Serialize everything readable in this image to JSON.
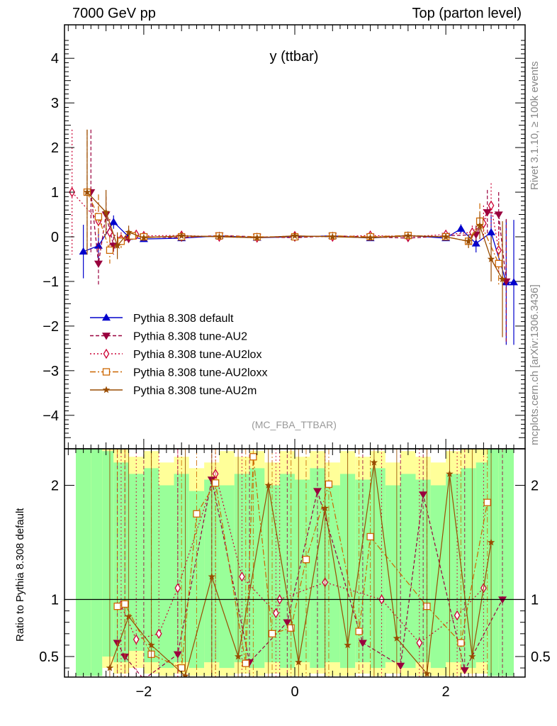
{
  "header": {
    "left": "7000 GeV pp",
    "right": "Top (parton level)"
  },
  "side_labels": {
    "rivet": "Rivet 3.1.10, ≥ 100k events",
    "mcplots": "mcplots.cern.ch [arXiv:1306.3436]"
  },
  "chart_data": [
    {
      "type": "line",
      "title": "y (ttbar)",
      "watermark": "(MC_FBA_TTBAR)",
      "xlim": [
        -3.05,
        3.05
      ],
      "ylim": [
        -4.75,
        4.75
      ],
      "yticks": [
        -4,
        -3,
        -2,
        -1,
        0,
        1,
        2,
        3,
        4
      ],
      "ytick_labels": [
        "−4",
        "−3",
        "−2",
        "−1",
        "0",
        "1",
        "2",
        "3",
        "4"
      ],
      "legend": "middle-left",
      "series": [
        {
          "name": "Pythia 8.308 default",
          "color": "#0000cc",
          "marker": "triangle-up",
          "dash": "none",
          "x": [
            -2.8,
            -2.6,
            -2.4,
            -2.2,
            -2.0,
            -1.5,
            -1.0,
            -0.5,
            0.0,
            0.5,
            1.0,
            1.5,
            2.0,
            2.2,
            2.4,
            2.6,
            2.8,
            2.9
          ],
          "y": [
            -0.33,
            -0.2,
            0.33,
            0.0,
            -0.05,
            -0.03,
            0.02,
            -0.02,
            0.0,
            0.02,
            -0.03,
            0.03,
            -0.03,
            0.18,
            -0.15,
            0.1,
            -1.02,
            -1.02
          ],
          "err": [
            0.6,
            0.35,
            0.15,
            0.08,
            0.04,
            0.03,
            0.03,
            0.03,
            0.03,
            0.03,
            0.03,
            0.03,
            0.05,
            0.1,
            0.2,
            0.4,
            1.4,
            1.4
          ]
        },
        {
          "name": "Pythia 8.308 tune-AU2",
          "color": "#99003d",
          "marker": "triangle-down",
          "dash": "5,3",
          "x": [
            -2.7,
            -2.6,
            -2.5,
            -2.4,
            -2.2,
            -2.0,
            -1.5,
            -1.0,
            -0.5,
            0.0,
            0.5,
            1.0,
            1.5,
            2.0,
            2.4,
            2.55,
            2.7,
            2.8
          ],
          "y": [
            1.0,
            -0.6,
            0.5,
            -0.2,
            -0.05,
            0.0,
            -0.02,
            0.03,
            0.0,
            -0.02,
            0.02,
            0.0,
            -0.03,
            0.02,
            0.05,
            0.55,
            0.5,
            -1.0
          ],
          "err": [
            1.4,
            0.5,
            0.4,
            0.2,
            0.08,
            0.04,
            0.03,
            0.03,
            0.03,
            0.03,
            0.03,
            0.03,
            0.03,
            0.05,
            0.2,
            0.5,
            0.5,
            1.4
          ]
        },
        {
          "name": "Pythia 8.308 tune-AU2lox",
          "color": "#cc0033",
          "marker": "diamond-open",
          "dash": "2,3",
          "x": [
            -2.95,
            -2.6,
            -2.45,
            -2.3,
            -2.1,
            -2.0,
            -1.5,
            -1.0,
            -0.5,
            0.0,
            0.5,
            1.0,
            1.5,
            2.0,
            2.35,
            2.5,
            2.6,
            2.7
          ],
          "y": [
            1.0,
            0.35,
            0.1,
            -0.05,
            0.05,
            0.02,
            0.03,
            0.0,
            -0.02,
            0.02,
            0.0,
            0.03,
            0.0,
            0.05,
            0.1,
            0.3,
            0.7,
            -0.3
          ],
          "err": [
            1.4,
            0.4,
            0.3,
            0.15,
            0.08,
            0.04,
            0.03,
            0.03,
            0.03,
            0.03,
            0.03,
            0.03,
            0.03,
            0.05,
            0.15,
            0.4,
            0.5,
            0.5
          ]
        },
        {
          "name": "Pythia 8.308 tune-AU2loxx",
          "color": "#cc6600",
          "marker": "square-open",
          "dash": "8,3,2,3",
          "x": [
            -2.75,
            -2.6,
            -2.45,
            -2.3,
            -2.15,
            -2.0,
            -1.5,
            -1.0,
            -0.5,
            0.0,
            0.5,
            1.0,
            1.5,
            2.0,
            2.3,
            2.45,
            2.7
          ],
          "y": [
            1.0,
            0.45,
            -0.3,
            -0.1,
            0.02,
            0.0,
            0.0,
            0.02,
            0.0,
            0.0,
            0.02,
            0.0,
            0.03,
            0.0,
            -0.1,
            0.35,
            -0.6
          ],
          "err": [
            1.4,
            0.5,
            0.3,
            0.15,
            0.08,
            0.04,
            0.03,
            0.03,
            0.03,
            0.03,
            0.03,
            0.03,
            0.03,
            0.05,
            0.15,
            0.4,
            0.5
          ]
        },
        {
          "name": "Pythia 8.308 tune-AU2m",
          "color": "#994c00",
          "marker": "star",
          "dash": "none",
          "x": [
            -2.75,
            -2.5,
            -2.35,
            -2.2,
            -2.0,
            -1.5,
            -1.0,
            -0.5,
            0.0,
            0.5,
            1.0,
            1.5,
            2.0,
            2.3,
            2.45,
            2.6,
            2.75
          ],
          "y": [
            1.0,
            0.55,
            -0.2,
            0.1,
            -0.02,
            0.02,
            0.0,
            -0.02,
            0.02,
            0.0,
            -0.02,
            0.02,
            0.0,
            -0.1,
            0.25,
            -0.5,
            -0.95
          ],
          "err": [
            1.4,
            0.5,
            0.3,
            0.15,
            0.05,
            0.03,
            0.03,
            0.03,
            0.03,
            0.03,
            0.03,
            0.03,
            0.05,
            0.15,
            0.3,
            0.5,
            1.3
          ]
        }
      ]
    },
    {
      "type": "line",
      "ylabel": "Ratio to Pythia 8.308 default",
      "xlim": [
        -3.05,
        3.05
      ],
      "ylim": [
        0.32,
        2.32
      ],
      "xticks": [
        -2,
        0,
        2
      ],
      "xtick_labels": [
        "−2",
        "0",
        "2"
      ],
      "yticks": [
        0.5,
        1,
        2
      ],
      "ytick_labels": [
        "0.5",
        "1",
        "2"
      ],
      "reference_line": 1,
      "band_colors": {
        "inner": "#99ff99",
        "outer": "#ffff99"
      },
      "bands": [
        {
          "x0": -2.9,
          "x1": -2.7,
          "inner": [
            0.33,
            2.32
          ],
          "outer": [
            0.33,
            2.32
          ]
        },
        {
          "x0": -2.7,
          "x1": -2.55,
          "inner": [
            0.33,
            2.32
          ],
          "outer": [
            0.33,
            2.32
          ]
        },
        {
          "x0": -2.55,
          "x1": -2.4,
          "inner": [
            0.5,
            2.3
          ],
          "outer": [
            0.4,
            2.32
          ]
        },
        {
          "x0": -2.4,
          "x1": -2.2,
          "inner": [
            0.45,
            2.2
          ],
          "outer": [
            0.35,
            2.32
          ]
        },
        {
          "x0": -2.2,
          "x1": -2.0,
          "inner": [
            0.55,
            2.1
          ],
          "outer": [
            0.4,
            2.25
          ]
        },
        {
          "x0": -2.0,
          "x1": -1.8,
          "inner": [
            0.45,
            2.15
          ],
          "outer": [
            0.35,
            2.3
          ]
        },
        {
          "x0": -1.8,
          "x1": -1.6,
          "inner": [
            0.4,
            2.0
          ],
          "outer": [
            0.33,
            2.2
          ]
        },
        {
          "x0": -1.6,
          "x1": -1.4,
          "inner": [
            0.45,
            2.1
          ],
          "outer": [
            0.35,
            2.25
          ]
        },
        {
          "x0": -1.4,
          "x1": -1.2,
          "inner": [
            0.4,
            1.95
          ],
          "outer": [
            0.33,
            2.15
          ]
        },
        {
          "x0": -1.2,
          "x1": -1.0,
          "inner": [
            0.45,
            2.05
          ],
          "outer": [
            0.33,
            2.2
          ]
        },
        {
          "x0": -1.0,
          "x1": -0.8,
          "inner": [
            0.4,
            2.0
          ],
          "outer": [
            0.33,
            2.3
          ]
        },
        {
          "x0": -0.8,
          "x1": -0.6,
          "inner": [
            0.45,
            2.1
          ],
          "outer": [
            0.35,
            2.25
          ]
        },
        {
          "x0": -0.6,
          "x1": -0.4,
          "inner": [
            0.4,
            2.15
          ],
          "outer": [
            0.33,
            2.3
          ]
        },
        {
          "x0": -0.4,
          "x1": -0.2,
          "inner": [
            0.45,
            2.0
          ],
          "outer": [
            0.35,
            2.2
          ]
        },
        {
          "x0": -0.2,
          "x1": 0.0,
          "inner": [
            0.4,
            2.1
          ],
          "outer": [
            0.33,
            2.3
          ]
        },
        {
          "x0": 0.0,
          "x1": 0.2,
          "inner": [
            0.45,
            2.05
          ],
          "outer": [
            0.33,
            2.25
          ]
        },
        {
          "x0": 0.2,
          "x1": 0.4,
          "inner": [
            0.4,
            2.15
          ],
          "outer": [
            0.35,
            2.3
          ]
        },
        {
          "x0": 0.4,
          "x1": 0.6,
          "inner": [
            0.45,
            2.0
          ],
          "outer": [
            0.33,
            2.2
          ]
        },
        {
          "x0": 0.6,
          "x1": 0.8,
          "inner": [
            0.4,
            2.1
          ],
          "outer": [
            0.33,
            2.3
          ]
        },
        {
          "x0": 0.8,
          "x1": 1.0,
          "inner": [
            0.45,
            2.05
          ],
          "outer": [
            0.35,
            2.25
          ]
        },
        {
          "x0": 1.0,
          "x1": 1.2,
          "inner": [
            0.4,
            2.15
          ],
          "outer": [
            0.33,
            2.3
          ]
        },
        {
          "x0": 1.2,
          "x1": 1.4,
          "inner": [
            0.45,
            2.0
          ],
          "outer": [
            0.35,
            2.2
          ]
        },
        {
          "x0": 1.4,
          "x1": 1.6,
          "inner": [
            0.4,
            2.1
          ],
          "outer": [
            0.33,
            2.3
          ]
        },
        {
          "x0": 1.6,
          "x1": 1.8,
          "inner": [
            0.45,
            2.05
          ],
          "outer": [
            0.33,
            2.25
          ]
        },
        {
          "x0": 1.8,
          "x1": 2.0,
          "inner": [
            0.4,
            2.0
          ],
          "outer": [
            0.33,
            2.2
          ]
        },
        {
          "x0": 2.0,
          "x1": 2.2,
          "inner": [
            0.45,
            2.1
          ],
          "outer": [
            0.33,
            2.3
          ]
        },
        {
          "x0": 2.2,
          "x1": 2.4,
          "inner": [
            0.4,
            2.15
          ],
          "outer": [
            0.35,
            2.32
          ]
        },
        {
          "x0": 2.4,
          "x1": 2.55,
          "inner": [
            0.45,
            2.2
          ],
          "outer": [
            0.35,
            2.32
          ]
        },
        {
          "x0": 2.55,
          "x1": 2.7,
          "inner": [
            0.33,
            2.32
          ],
          "outer": [
            0.33,
            2.32
          ]
        },
        {
          "x0": 2.7,
          "x1": 2.9,
          "inner": [
            0.33,
            2.32
          ],
          "outer": [
            0.33,
            2.32
          ]
        }
      ],
      "series": [
        {
          "name": "Pythia 8.308 tune-AU2",
          "color": "#99003d",
          "marker": "triangle-down",
          "dash": "5,3",
          "x": [
            -2.35,
            -2.25,
            -2.0,
            -1.55,
            -1.1,
            -0.6,
            -0.1,
            0.3,
            0.9,
            1.4,
            1.7,
            2.25,
            2.75
          ],
          "y": [
            0.62,
            0.5,
            0.3,
            0.52,
            2.05,
            0.45,
            0.8,
            1.95,
            0.62,
            0.42,
            1.92,
            0.38,
            1.0
          ]
        },
        {
          "name": "Pythia 8.308 tune-AU2lox",
          "color": "#cc0033",
          "marker": "diamond-open",
          "dash": "2,3",
          "x": [
            -2.3,
            -2.1,
            -1.8,
            -1.55,
            -1.05,
            -0.7,
            -0.25,
            -0.2,
            0.4,
            1.15,
            1.65,
            2.15,
            2.5
          ],
          "y": [
            0.95,
            0.65,
            0.7,
            1.1,
            2.1,
            1.2,
            0.88,
            1.0,
            1.15,
            1.0,
            0.62,
            0.86,
            1.1
          ]
        },
        {
          "name": "Pythia 8.308 tune-AU2loxx",
          "color": "#cc6600",
          "marker": "square-open",
          "dash": "8,3,2,3",
          "x": [
            -2.35,
            -2.25,
            -1.9,
            -1.5,
            -1.3,
            -1.05,
            -0.65,
            -0.55,
            -0.3,
            -0.05,
            0.15,
            0.45,
            0.85,
            1.0,
            1.75,
            2.2,
            2.55
          ],
          "y": [
            0.94,
            0.96,
            0.52,
            0.4,
            1.75,
            2.02,
            0.44,
            2.25,
            0.7,
            0.75,
            1.35,
            2.01,
            0.72,
            1.55,
            0.94,
            0.62,
            1.85
          ]
        },
        {
          "name": "Pythia 8.308 tune-AU2m",
          "color": "#994c00",
          "marker": "star",
          "dash": "none",
          "x": [
            -2.45,
            -2.2,
            -1.9,
            -1.45,
            -1.1,
            -0.75,
            -0.35,
            0.05,
            0.4,
            0.7,
            1.05,
            1.35,
            1.75,
            2.05,
            2.35,
            2.6
          ],
          "y": [
            0.4,
            0.85,
            0.6,
            0.33,
            1.2,
            0.5,
            2.0,
            0.45,
            1.8,
            0.6,
            2.2,
            0.66,
            0.35,
            2.1,
            0.5,
            1.5
          ]
        }
      ]
    }
  ]
}
